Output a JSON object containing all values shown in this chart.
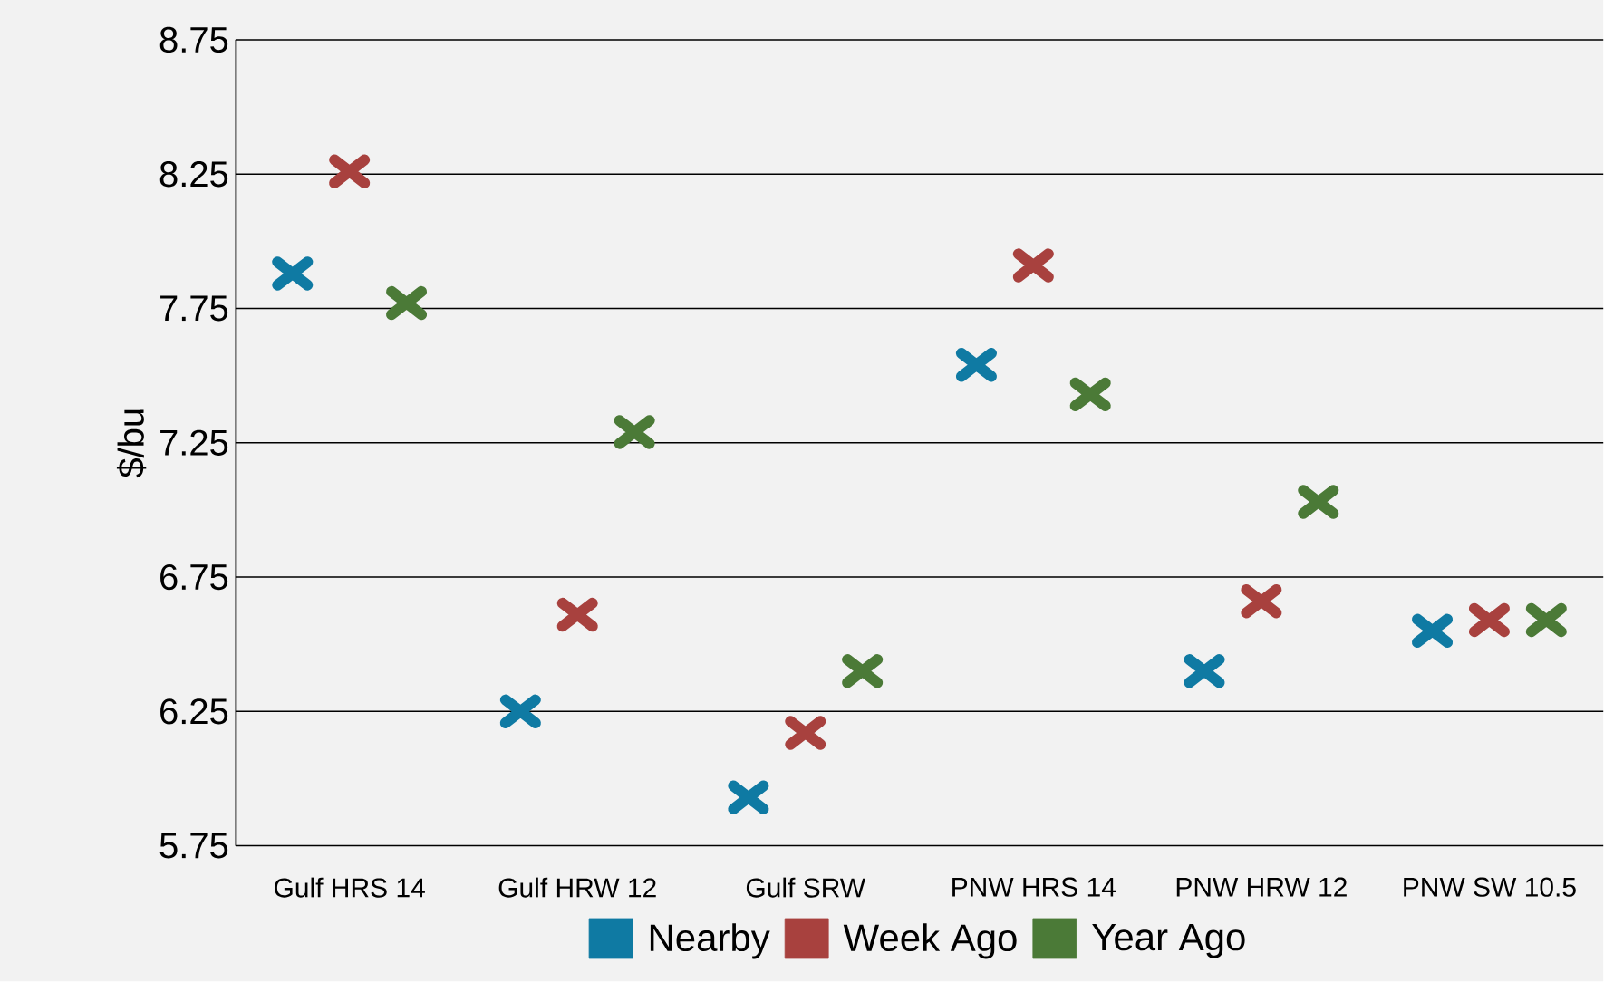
{
  "chart_data": {
    "type": "scatter",
    "ylabel": "$/bu",
    "categories": [
      "Gulf HRS 14",
      "Gulf HRW 12",
      "Gulf SRW",
      "PNW HRS 14",
      "PNW HRW 12",
      "PNW SW 10.5"
    ],
    "series": [
      {
        "name": "Nearby",
        "color": "#0f7aa3",
        "values": [
          7.88,
          6.25,
          5.93,
          7.54,
          6.4,
          6.55
        ]
      },
      {
        "name": "Week Ago",
        "color": "#a8413e",
        "values": [
          8.26,
          6.61,
          6.17,
          7.91,
          6.66,
          6.59
        ]
      },
      {
        "name": "Year Ago",
        "color": "#4b7a37",
        "values": [
          7.77,
          7.29,
          6.4,
          7.43,
          7.03,
          6.59
        ]
      }
    ],
    "ylim": [
      5.75,
      8.75
    ],
    "yticks": [
      5.75,
      6.25,
      6.75,
      7.25,
      7.75,
      8.25,
      8.75
    ],
    "grid": "y",
    "legend": "bottom",
    "marker": "cross"
  }
}
